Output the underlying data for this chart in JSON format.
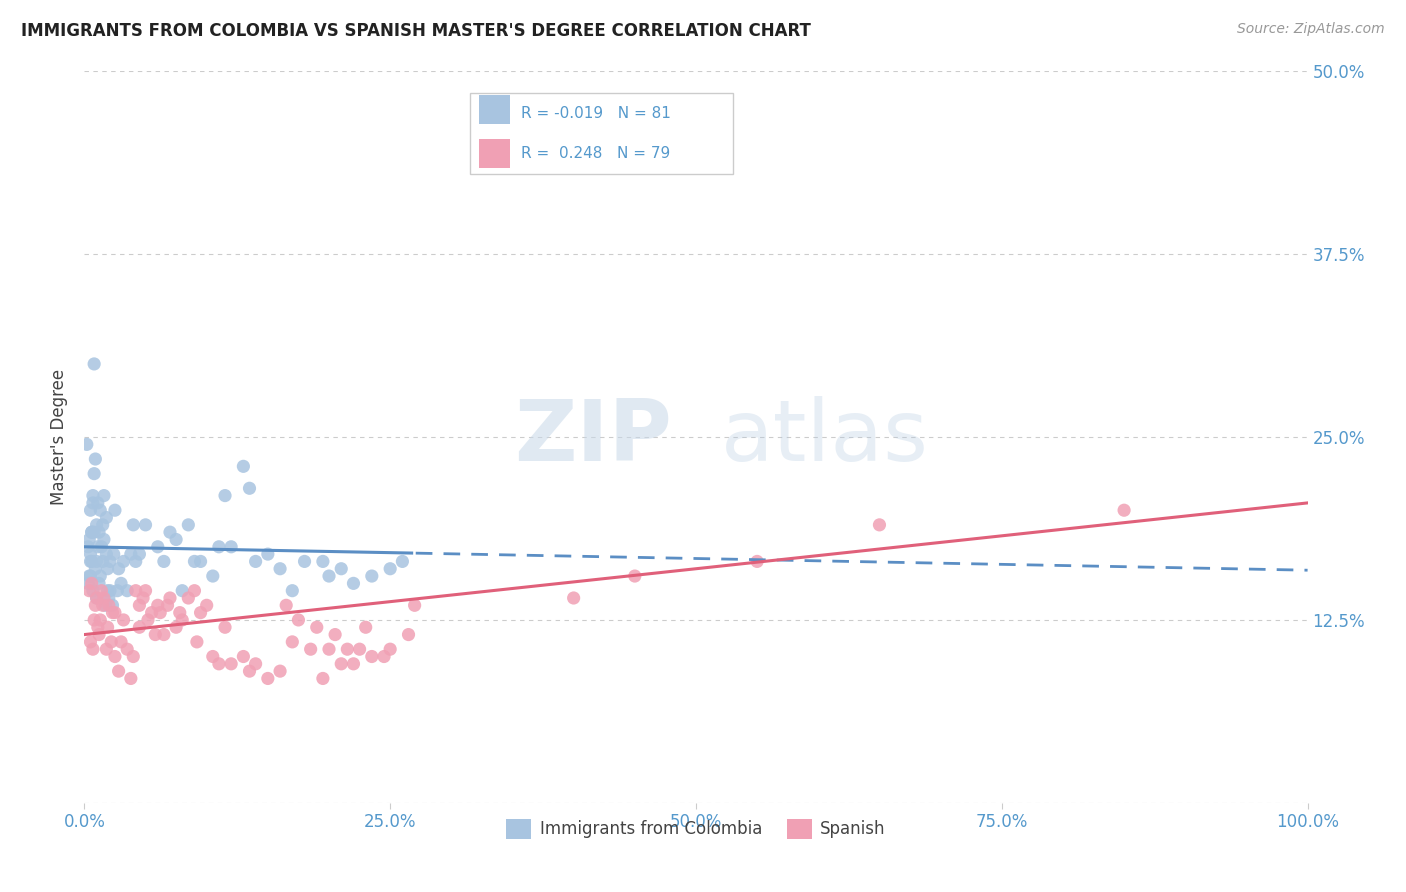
{
  "title": "IMMIGRANTS FROM COLOMBIA VS SPANISH MASTER'S DEGREE CORRELATION CHART",
  "source_text": "Source: ZipAtlas.com",
  "ylabel": "Master's Degree",
  "xlabel": "",
  "xlim": [
    0.0,
    100.0
  ],
  "ylim": [
    0.0,
    50.0
  ],
  "yticks": [
    0.0,
    12.5,
    25.0,
    37.5,
    50.0
  ],
  "xticks": [
    0.0,
    25.0,
    50.0,
    75.0,
    100.0
  ],
  "xtick_labels": [
    "0.0%",
    "25.0%",
    "50.0%",
    "75.0%",
    "100.0%"
  ],
  "ytick_labels": [
    "",
    "12.5%",
    "25.0%",
    "37.5%",
    "50.0%"
  ],
  "series1_label": "Immigrants from Colombia",
  "series2_label": "Spanish",
  "series1_R": -0.019,
  "series1_N": 81,
  "series2_R": 0.248,
  "series2_N": 79,
  "series1_color": "#a8c4e0",
  "series2_color": "#f0a0b4",
  "series1_line_color": "#5b8ec4",
  "series2_line_color": "#e0607a",
  "title_color": "#222222",
  "axis_color": "#5599cc",
  "background_color": "#ffffff",
  "watermark_zip": "ZIP",
  "watermark_atlas": "atlas",
  "legend_box_color": "#ffffff",
  "legend_border_color": "#aaaaaa",
  "series1_x": [
    0.3,
    0.4,
    0.5,
    0.5,
    0.5,
    0.6,
    0.6,
    0.7,
    0.7,
    0.8,
    0.8,
    0.9,
    0.9,
    1.0,
    1.0,
    1.0,
    1.1,
    1.1,
    1.2,
    1.2,
    1.3,
    1.3,
    1.4,
    1.5,
    1.5,
    1.6,
    1.6,
    1.7,
    1.8,
    1.8,
    1.9,
    1.9,
    2.0,
    2.1,
    2.1,
    2.3,
    2.4,
    2.5,
    2.7,
    2.8,
    3.0,
    3.2,
    3.5,
    4.0,
    4.2,
    4.5,
    5.0,
    6.0,
    6.5,
    7.0,
    7.5,
    8.0,
    8.5,
    9.0,
    9.5,
    10.5,
    11.0,
    11.5,
    12.0,
    13.0,
    13.5,
    14.0,
    15.0,
    16.0,
    17.0,
    18.0,
    19.5,
    20.0,
    21.0,
    22.0,
    23.5,
    25.0,
    0.2,
    0.3,
    0.4,
    0.5,
    0.6,
    0.7,
    0.8,
    3.8,
    26.0
  ],
  "series1_y": [
    17.5,
    18.0,
    15.5,
    20.0,
    17.0,
    18.5,
    16.5,
    20.5,
    14.5,
    22.5,
    18.5,
    23.5,
    16.0,
    19.0,
    16.5,
    14.0,
    20.5,
    17.5,
    18.5,
    15.0,
    20.0,
    15.5,
    17.5,
    19.0,
    16.5,
    21.0,
    18.0,
    13.5,
    17.0,
    19.5,
    16.0,
    14.5,
    14.0,
    16.5,
    14.5,
    13.5,
    17.0,
    20.0,
    14.5,
    16.0,
    15.0,
    16.5,
    14.5,
    19.0,
    16.5,
    17.0,
    19.0,
    17.5,
    16.5,
    18.5,
    18.0,
    14.5,
    19.0,
    16.5,
    16.5,
    15.5,
    17.5,
    21.0,
    17.5,
    23.0,
    21.5,
    16.5,
    17.0,
    16.0,
    14.5,
    16.5,
    16.5,
    15.5,
    16.0,
    15.0,
    15.5,
    16.0,
    24.5,
    15.0,
    15.5,
    16.5,
    18.5,
    21.0,
    30.0,
    17.0,
    16.5
  ],
  "series2_x": [
    0.4,
    0.5,
    0.6,
    0.7,
    0.8,
    0.9,
    1.0,
    1.1,
    1.2,
    1.3,
    1.4,
    1.5,
    1.6,
    1.8,
    1.9,
    2.0,
    2.2,
    2.3,
    2.5,
    2.5,
    2.8,
    3.0,
    3.2,
    3.5,
    3.8,
    4.0,
    4.2,
    4.5,
    4.5,
    4.8,
    5.0,
    5.2,
    5.5,
    5.8,
    6.0,
    6.2,
    6.5,
    6.8,
    7.0,
    7.5,
    7.8,
    8.0,
    8.5,
    9.0,
    9.2,
    9.5,
    10.0,
    10.5,
    11.0,
    11.5,
    12.0,
    13.0,
    13.5,
    14.0,
    15.0,
    16.0,
    16.5,
    17.0,
    17.5,
    18.5,
    19.0,
    19.5,
    20.0,
    20.5,
    21.0,
    21.5,
    22.0,
    22.5,
    23.0,
    23.5,
    24.5,
    25.0,
    26.5,
    27.0,
    40.0,
    45.0,
    55.0,
    65.0,
    85.0
  ],
  "series2_y": [
    14.5,
    11.0,
    15.0,
    10.5,
    12.5,
    13.5,
    14.0,
    12.0,
    11.5,
    12.5,
    14.5,
    13.5,
    14.0,
    10.5,
    12.0,
    13.5,
    11.0,
    13.0,
    13.0,
    10.0,
    9.0,
    11.0,
    12.5,
    10.5,
    8.5,
    10.0,
    14.5,
    12.0,
    13.5,
    14.0,
    14.5,
    12.5,
    13.0,
    11.5,
    13.5,
    13.0,
    11.5,
    13.5,
    14.0,
    12.0,
    13.0,
    12.5,
    14.0,
    14.5,
    11.0,
    13.0,
    13.5,
    10.0,
    9.5,
    12.0,
    9.5,
    10.0,
    9.0,
    9.5,
    8.5,
    9.0,
    13.5,
    11.0,
    12.5,
    10.5,
    12.0,
    8.5,
    10.5,
    11.5,
    9.5,
    10.5,
    9.5,
    10.5,
    12.0,
    10.0,
    10.0,
    10.5,
    11.5,
    13.5,
    14.0,
    15.5,
    16.5,
    19.0,
    20.0
  ],
  "series1_slope": -0.016,
  "series1_intercept": 17.5,
  "series2_slope": 0.09,
  "series2_intercept": 11.5,
  "series1_solid_end": 27.0,
  "series2_solid_end": 100.0
}
